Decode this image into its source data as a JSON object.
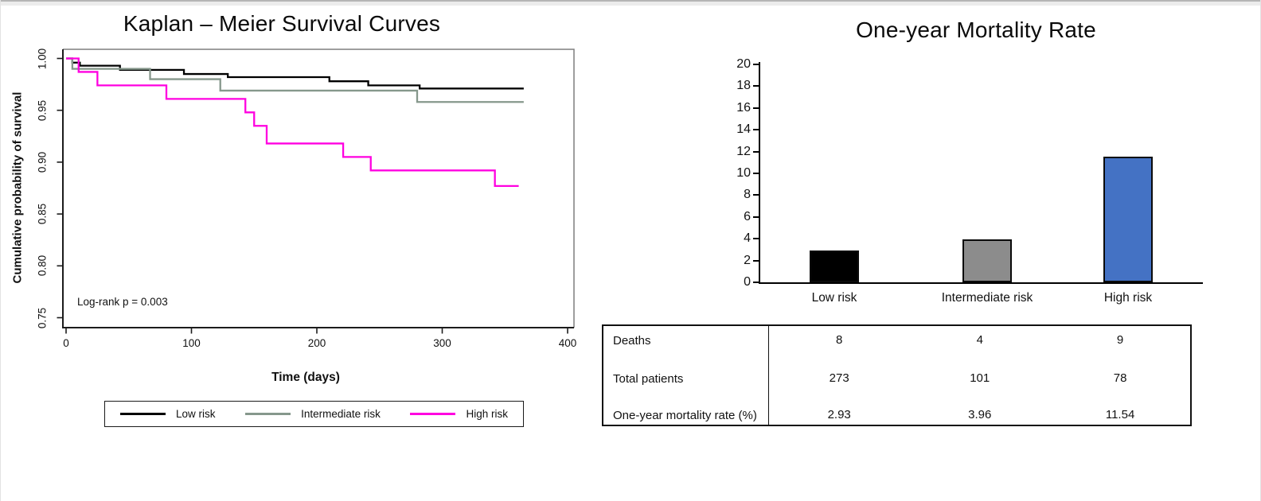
{
  "chart_data": [
    {
      "type": "line",
      "subtype": "kaplan-meier-step",
      "title": "Kaplan – Meier Survival Curves",
      "xlabel": "Time (days)",
      "ylabel": "Cumulative probability of survival",
      "xlim": [
        0,
        400
      ],
      "ylim": [
        0.74,
        1.0
      ],
      "xticks": [
        "0",
        "100",
        "200",
        "300",
        "400"
      ],
      "yticks": [
        "1.00",
        "0.95",
        "0.90",
        "0.85",
        "0.80",
        "0.75"
      ],
      "grid": false,
      "legend_position": "bottom",
      "annotation": "Log-rank p = 0.003",
      "series": [
        {
          "name": "Low risk",
          "color": "#000000",
          "points": [
            [
              0,
              1.0
            ],
            [
              5,
              0.996
            ],
            [
              11,
              0.993
            ],
            [
              43,
              0.989
            ],
            [
              94,
              0.985
            ],
            [
              129,
              0.982
            ],
            [
              210,
              0.978
            ],
            [
              241,
              0.974
            ],
            [
              282,
              0.971
            ],
            [
              365,
              0.971
            ]
          ]
        },
        {
          "name": "Intermediate risk",
          "color": "#86988c",
          "points": [
            [
              0,
              1.0
            ],
            [
              5,
              0.99
            ],
            [
              67,
              0.98
            ],
            [
              123,
              0.969
            ],
            [
              280,
              0.958
            ],
            [
              365,
              0.958
            ]
          ]
        },
        {
          "name": "High risk",
          "color": "#ff00e0",
          "points": [
            [
              0,
              1.0
            ],
            [
              10,
              0.987
            ],
            [
              25,
              0.974
            ],
            [
              80,
              0.961
            ],
            [
              143,
              0.948
            ],
            [
              150,
              0.935
            ],
            [
              160,
              0.918
            ],
            [
              221,
              0.905
            ],
            [
              243,
              0.892
            ],
            [
              342,
              0.877
            ],
            [
              361,
              0.877
            ]
          ]
        }
      ]
    },
    {
      "type": "bar",
      "title": "One-year Mortality Rate",
      "categories": [
        "Low risk",
        "Intermediate risk",
        "High risk"
      ],
      "values": [
        2.93,
        3.96,
        11.54
      ],
      "bar_colors": [
        "#000000",
        "#8c8c8c",
        "#4472c4"
      ],
      "xlabel": "",
      "ylabel": "",
      "ylim": [
        0,
        20
      ],
      "ytick_step": 2,
      "grid": false,
      "legend_position": "none"
    }
  ],
  "table": {
    "rows": [
      {
        "label": "Deaths",
        "values": [
          "8",
          "4",
          "9"
        ]
      },
      {
        "label": "Total patients",
        "values": [
          "273",
          "101",
          "78"
        ]
      },
      {
        "label": "One-year mortality rate (%)",
        "values": [
          "2.93",
          "3.96",
          "11.54"
        ]
      }
    ]
  }
}
